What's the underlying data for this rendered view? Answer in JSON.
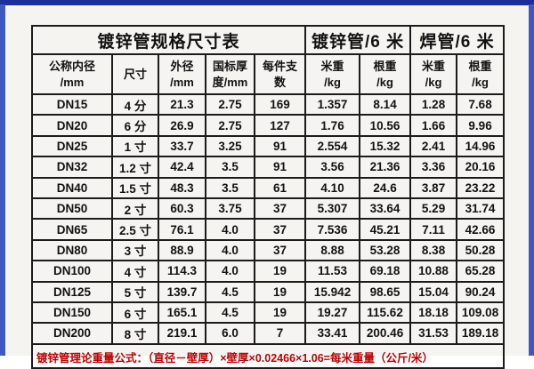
{
  "chart_data": {
    "type": "table",
    "title": "镀锌管规格尺寸表",
    "group_headers": [
      "镀锌管/6 米",
      "焊管/6 米"
    ],
    "columns": [
      "公称内径\n/mm",
      "尺寸",
      "外径\n/mm",
      "国标厚\n度/mm",
      "每件支\n数",
      "米重\n/kg",
      "根重\n/kg",
      "米重\n/kg",
      "根重\n/kg"
    ],
    "rows": [
      [
        "DN15",
        "4 分",
        "21.3",
        "2.75",
        "169",
        "1.357",
        "8.14",
        "1.28",
        "7.68"
      ],
      [
        "DN20",
        "6 分",
        "26.9",
        "2.75",
        "127",
        "1.76",
        "10.56",
        "1.66",
        "9.96"
      ],
      [
        "DN25",
        "1 寸",
        "33.7",
        "3.25",
        "91",
        "2.554",
        "15.32",
        "2.41",
        "14.96"
      ],
      [
        "DN32",
        "1.2 寸",
        "42.4",
        "3.5",
        "91",
        "3.56",
        "21.36",
        "3.36",
        "20.16"
      ],
      [
        "DN40",
        "1.5 寸",
        "48.3",
        "3.5",
        "61",
        "4.10",
        "24.6",
        "3.87",
        "23.22"
      ],
      [
        "DN50",
        "2 寸",
        "60.3",
        "3.75",
        "37",
        "5.307",
        "33.64",
        "5.29",
        "31.74"
      ],
      [
        "DN65",
        "2.5 寸",
        "76.1",
        "4.0",
        "37",
        "7.536",
        "45.21",
        "7.11",
        "42.66"
      ],
      [
        "DN80",
        "3 寸",
        "88.9",
        "4.0",
        "37",
        "8.88",
        "53.28",
        "8.38",
        "50.28"
      ],
      [
        "DN100",
        "4 寸",
        "114.3",
        "4.0",
        "19",
        "11.53",
        "69.18",
        "10.88",
        "65.28"
      ],
      [
        "DN125",
        "5 寸",
        "139.7",
        "4.5",
        "19",
        "15.942",
        "98.65",
        "15.04",
        "90.24"
      ],
      [
        "DN150",
        "6 寸",
        "165.1",
        "4.5",
        "19",
        "19.27",
        "115.62",
        "18.18",
        "109.08"
      ],
      [
        "DN200",
        "8 寸",
        "219.1",
        "6.0",
        "7",
        "33.41",
        "200.46",
        "31.53",
        "189.18"
      ]
    ],
    "footer_note": "镀锌管理论重量公式：（直径－壁厚）×壁厚×0.02466×1.06=每米重量（公斤/米）",
    "layout": {
      "grid": "on",
      "title_span_cols": 5,
      "group_span_cols": 2
    }
  },
  "colors": {
    "frame_top": "#1d2e9f",
    "frame_side": "#3c58c3",
    "page_bg": "#f5f4f1",
    "table_border": "#1b1b1b",
    "text": "#121212",
    "footer_red": "#c00000"
  }
}
